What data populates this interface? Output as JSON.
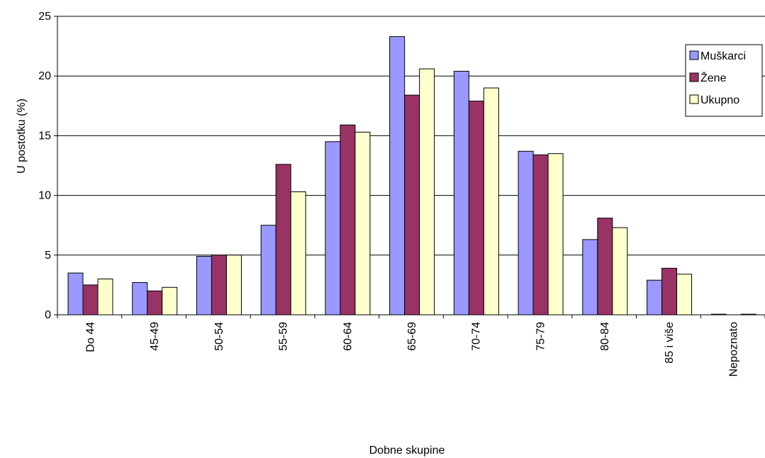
{
  "chart_data": {
    "type": "bar",
    "title": "",
    "xlabel": "Dobne skupine",
    "ylabel": "U postotku (%)",
    "ylim": [
      0,
      25
    ],
    "yticks": [
      "0",
      "5",
      "10",
      "15",
      "20",
      "25"
    ],
    "grid": true,
    "legend_position": "right",
    "categories": [
      "Do 44",
      "45-49",
      "50-54",
      "55-59",
      "60-64",
      "65-69",
      "70-74",
      "75-79",
      "80-84",
      "85 i više",
      "Nepoznato"
    ],
    "series": [
      {
        "name": "Muškarci",
        "color": "#9999ff",
        "values": [
          3.5,
          2.7,
          4.9,
          7.5,
          14.5,
          23.3,
          20.4,
          13.7,
          6.3,
          2.9,
          0.05
        ]
      },
      {
        "name": "Žene",
        "color": "#993366",
        "values": [
          2.5,
          2.0,
          5.0,
          12.6,
          15.9,
          18.4,
          17.9,
          13.4,
          8.1,
          3.9,
          0.0
        ]
      },
      {
        "name": "Ukupno",
        "color": "#ffffcc",
        "values": [
          3.0,
          2.3,
          5.0,
          10.3,
          15.3,
          20.6,
          19.0,
          13.5,
          7.3,
          3.4,
          0.05
        ]
      }
    ]
  }
}
